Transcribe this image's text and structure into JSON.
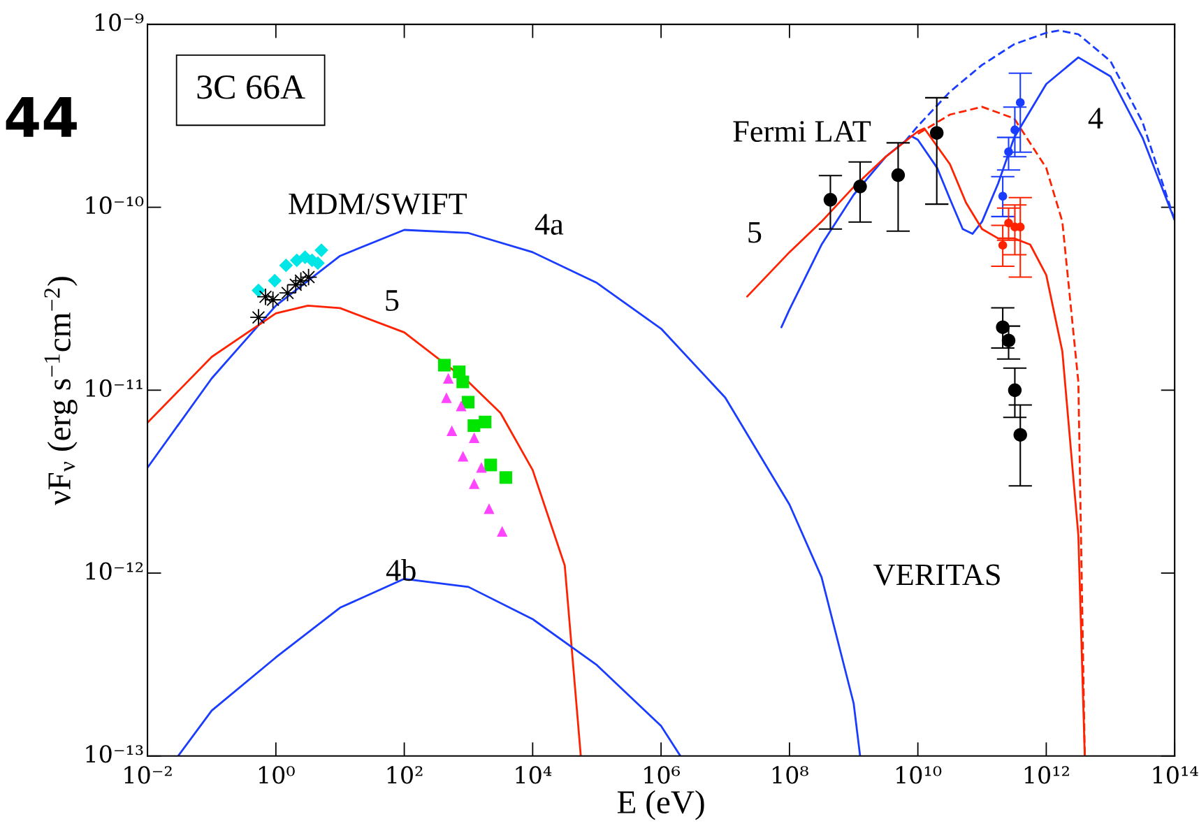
{
  "chart_data": {
    "type": "scatter",
    "title": "3C 66A",
    "xlabel": "E (eV)",
    "ylabel": "νF$_{ν}$ (erg s$^{−1}$cm$^{−2}$)",
    "log": "xy",
    "grid": false,
    "xlim": [
      0.01,
      100000000000000.0
    ],
    "ylim": [
      1e-13,
      1e-09
    ],
    "xticks": [
      {
        "value": 0.01,
        "label": "10⁻²"
      },
      {
        "value": 1,
        "label": "10⁰"
      },
      {
        "value": 100.0,
        "label": "10²"
      },
      {
        "value": 10000.0,
        "label": "10⁴"
      },
      {
        "value": 1000000.0,
        "label": "10⁶"
      },
      {
        "value": 100000000.0,
        "label": "10⁸"
      },
      {
        "value": 10000000000.0,
        "label": "10¹⁰"
      },
      {
        "value": 1000000000000.0,
        "label": "10¹²"
      },
      {
        "value": 100000000000000.0,
        "label": "10¹⁴"
      }
    ],
    "yticks": [
      {
        "value": 1e-13,
        "label": "10⁻¹³"
      },
      {
        "value": 1e-12,
        "label": "10⁻¹²"
      },
      {
        "value": 1e-11,
        "label": "10⁻¹¹"
      },
      {
        "value": 1e-10,
        "label": "10⁻¹⁰"
      },
      {
        "value": 1e-09,
        "label": "10⁻⁹"
      }
    ],
    "annotations": [
      "44",
      "MDM/SWIFT",
      "4a",
      "5",
      "4b",
      "Fermi LAT",
      "5",
      "4",
      "VERITAS"
    ],
    "series": [
      {
        "type": "line",
        "line_style": "solid",
        "marker": "none",
        "color": "#1a3cff",
        "x": [
          0.01,
          0.1,
          1,
          10,
          100,
          1000.0,
          10000.0,
          100000.0,
          1000000.0,
          10000000.0,
          100000000.0,
          316000000.0,
          1000000000.0,
          1260000000.0
        ],
        "values": [
          3.77e-12,
          1.16e-11,
          2.9e-11,
          5.42e-11,
          7.52e-11,
          7.23e-11,
          5.68e-11,
          3.86e-11,
          2.17e-11,
          9.1e-12,
          2.37e-12,
          9.5e-13,
          1.94e-13,
          1e-13
        ]
      },
      {
        "type": "line",
        "line_style": "solid",
        "marker": "none",
        "color": "#ff2200",
        "x": [
          0.01,
          0.1,
          1,
          3.16,
          10,
          100,
          1000.0,
          3160.0,
          10000.0,
          31600.0,
          56200.0
        ],
        "values": [
          6.64e-12,
          1.52e-11,
          2.63e-11,
          2.9e-11,
          2.81e-11,
          2.07e-11,
          1.11e-11,
          7.5e-12,
          3.66e-12,
          1.1e-12,
          1e-13
        ]
      },
      {
        "type": "line",
        "line_style": "solid",
        "marker": "none",
        "color": "#1a3cff",
        "x": [
          0.03,
          0.1,
          1,
          10,
          100,
          1000.0,
          10000.0,
          100000.0,
          1000000.0,
          2000000.0
        ],
        "values": [
          1e-13,
          1.77e-13,
          3.46e-13,
          6.47e-13,
          9.3e-13,
          8.4e-13,
          5.6e-13,
          3.14e-13,
          1.46e-13,
          1e-13
        ]
      },
      {
        "type": "line",
        "line_style": "solid",
        "marker": "none",
        "color": "#1a3cff",
        "x": [
          75000000.0,
          100000000.0,
          316000000.0,
          1000000000.0,
          3160000000.0,
          7900000000.0,
          10000000000.0,
          20000000000.0,
          31600000000.0,
          50000000000.0,
          71000000000.0,
          100000000000.0,
          178000000000.0,
          316000000000.0,
          1000000000000.0,
          3160000000000.0,
          10000000000000.0,
          31600000000000.0,
          100000000000000.0
        ],
        "values": [
          2.21e-11,
          2.76e-11,
          6.25e-11,
          1.17e-10,
          1.89e-10,
          2.45e-10,
          2.34e-10,
          1.64e-10,
          1.11e-10,
          7.6e-11,
          7.16e-11,
          8.35e-11,
          1.35e-10,
          2.4e-10,
          4.72e-10,
          6.6e-10,
          5.2e-10,
          2.4e-10,
          8.5e-11
        ]
      },
      {
        "type": "line",
        "line_style": "dashed",
        "marker": "none",
        "color": "#1a3cff",
        "x": [
          6300000000.0,
          10000000000.0,
          31600000000.0,
          100000000000.0,
          316000000000.0,
          1000000000000.0,
          1580000000000.0,
          3160000000000.0,
          10000000000000.0,
          31600000000000.0,
          100000000000000.0
        ],
        "values": [
          2.29e-10,
          2.78e-10,
          4.28e-10,
          6e-10,
          7.78e-10,
          8.99e-10,
          9.26e-10,
          8.83e-10,
          6.3e-10,
          2.92e-10,
          8.5e-11
        ]
      },
      {
        "type": "line",
        "line_style": "solid",
        "marker": "none",
        "color": "#ff2200",
        "x": [
          21900000.0,
          100000000.0,
          316000000.0,
          1000000000.0,
          3160000000.0,
          10000000000.0,
          12600000000.0,
          31600000000.0,
          56200000000.0,
          100000000000.0,
          178000000000.0,
          316000000000.0,
          562000000000.0,
          1000000000000.0,
          1780000000000.0,
          3160000000000.0,
          3980000000000.0
        ],
        "values": [
          3.25e-11,
          5.68e-11,
          8.35e-11,
          1.29e-10,
          1.89e-10,
          2.6e-10,
          2.7e-10,
          1.72e-10,
          1.06e-10,
          7.6e-11,
          6.76e-11,
          6.76e-11,
          6.25e-11,
          4.26e-11,
          1.63e-11,
          1.61e-12,
          1e-13
        ]
      },
      {
        "type": "line",
        "line_style": "dashed",
        "marker": "none",
        "color": "#ff2200",
        "x": [
          10000000000.0,
          31600000000.0,
          100000000000.0,
          316000000000.0,
          1000000000000.0,
          1780000000000.0,
          3160000000000.0,
          3980000000000.0
        ],
        "values": [
          2.52e-10,
          3.21e-10,
          3.54e-10,
          3.06e-10,
          1.64e-10,
          8.35e-11,
          1.11e-11,
          1e-13
        ]
      },
      {
        "marker": "diamond",
        "color": "#00e5e5",
        "x": [
          0.536,
          0.96,
          1.44,
          2.12,
          2.85,
          3.66,
          4.51,
          5.12
        ],
        "values": [
          3.51e-11,
          3.97e-11,
          4.81e-11,
          5.13e-11,
          5.33e-11,
          5.13e-11,
          4.95e-11,
          5.82e-11
        ]
      },
      {
        "marker": "cross",
        "color": "#000000",
        "x": [
          0.536,
          0.689,
          0.9,
          1.52,
          2.04,
          2.45,
          3.23
        ],
        "values": [
          2.5e-11,
          3.24e-11,
          3.12e-11,
          3.4e-11,
          3.77e-11,
          3.97e-11,
          4.15e-11
        ]
      },
      {
        "marker": "square",
        "color": "#00e600",
        "x": [
          421,
          718,
          815,
          989,
          1216,
          1815,
          2218,
          3819
        ],
        "values": [
          1.37e-11,
          1.26e-11,
          1.11e-11,
          8.6e-12,
          6.4e-12,
          6.7e-12,
          3.9e-12,
          3.33e-12
        ]
      },
      {
        "marker": "triangle",
        "color": "#ff44ff",
        "x": [
          485,
          454,
          769,
          551,
          1227,
          822,
          1589,
          1227,
          2094,
          3350
        ],
        "values": [
          1.16e-11,
          9.1e-12,
          8.2e-12,
          6e-12,
          5.5e-12,
          4.35e-12,
          3.78e-12,
          3.08e-12,
          2.25e-12,
          1.69e-12
        ]
      },
      {
        "marker": "circle",
        "color": "#000000",
        "x": [
          434000000.0,
          1260000000.0,
          4930000000.0,
          19700000000.0
        ],
        "values": [
          1.1e-10,
          1.3e-10,
          1.5e-10,
          2.55e-10
        ],
        "errors": [
          [
            7.6e-11,
            1.49e-10
          ],
          [
            8.3e-11,
            1.77e-10
          ],
          [
            7.4e-11,
            2.25e-10
          ],
          [
            1.04e-10,
            3.97e-10
          ]
        ]
      },
      {
        "marker": "circle",
        "color": "#1a3cff",
        "x": [
          210000000000.0,
          259000000000.0,
          324000000000.0,
          394000000000.0
        ],
        "values": [
          1.15e-10,
          2.01e-10,
          2.65e-10,
          3.74e-10
        ],
        "errors": [
          [
            8.9e-11,
            1.47e-10
          ],
          [
            1.6e-10,
            2.41e-10
          ],
          [
            1.89e-10,
            3.53e-10
          ],
          [
            2e-10,
            5.41e-10
          ]
        ]
      },
      {
        "marker": "circle",
        "color": "#ff2200",
        "x": [
          210000000000.0,
          259000000000.0,
          324000000000.0,
          394000000000.0
        ],
        "values": [
          6.2e-11,
          8.2e-11,
          7.8e-11,
          7.8e-11
        ],
        "errors": [
          [
            4.76e-11,
            7.96e-11
          ],
          [
            6.6e-11,
            9.9e-11
          ],
          [
            5.5e-11,
            1.03e-10
          ],
          [
            4.15e-11,
            1.13e-10
          ]
        ]
      },
      {
        "marker": "circle",
        "color": "#000000",
        "x": [
          210000000000.0,
          259000000000.0,
          324000000000.0,
          394000000000.0
        ],
        "values": [
          2.21e-11,
          1.87e-11,
          1e-11,
          5.7e-12
        ],
        "errors": [
          [
            1.7e-11,
            2.82e-11
          ],
          [
            1.48e-11,
            2.24e-11
          ],
          [
            7.1e-12,
            1.32e-11
          ],
          [
            3e-12,
            8.3e-12
          ]
        ]
      }
    ]
  }
}
